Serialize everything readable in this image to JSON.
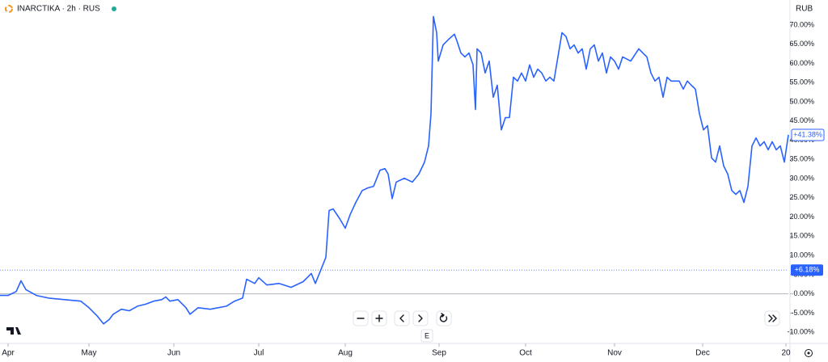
{
  "ui": {
    "header": "INARCTIKA · 2h · RUS",
    "currency": "RUB",
    "compare_button": "E"
  },
  "chart_data": {
    "type": "line",
    "x": [
      -2,
      0,
      2,
      3.2,
      4.4,
      7,
      10,
      14,
      18,
      20,
      22,
      23.6,
      25,
      26,
      28,
      30,
      32,
      34,
      36,
      38,
      39,
      40,
      42,
      44,
      45,
      47,
      50,
      54,
      56,
      58,
      59,
      61,
      62,
      64,
      67,
      70,
      73,
      75,
      76,
      77.6,
      78.6,
      79.4,
      80.4,
      82,
      83.4,
      84.6,
      86,
      87.6,
      89,
      90.4,
      92,
      93.2,
      94,
      95,
      96,
      98,
      100,
      101.6,
      103,
      104,
      104.6,
      105.2,
      106,
      106.4,
      107.6,
      109,
      110.4,
      111,
      112,
      113,
      114,
      115,
      115.6,
      116,
      117,
      118,
      119,
      120,
      121,
      122,
      123,
      124,
      125,
      126,
      127,
      128,
      129,
      130,
      131,
      132,
      133,
      134,
      135,
      136,
      137,
      138,
      139,
      140,
      141,
      142,
      143,
      144,
      145,
      146,
      147,
      148,
      149,
      150,
      151,
      152,
      154,
      156,
      157,
      158,
      159,
      160,
      161,
      162,
      163,
      164,
      166,
      167,
      168,
      169,
      170,
      171,
      172,
      173,
      174,
      175,
      176,
      177,
      178,
      179,
      180,
      181,
      182,
      183,
      184,
      185,
      186,
      187,
      188,
      189,
      190,
      191,
      192,
      193
    ],
    "series": [
      {
        "name": "INARCTIKA",
        "color": "#2962ff",
        "values": [
          -0.4,
          -0.4,
          0.6,
          3.4,
          1.1,
          -0.4,
          -1.1,
          -1.5,
          -1.9,
          -3.6,
          -5.7,
          -7.8,
          -6.7,
          -5.3,
          -4.0,
          -4.4,
          -3.2,
          -2.7,
          -1.9,
          -1.5,
          -0.8,
          -1.9,
          -1.5,
          -3.6,
          -5.3,
          -3.6,
          -4.0,
          -3.2,
          -1.9,
          -1.1,
          3.8,
          2.7,
          4.2,
          2.3,
          2.7,
          1.7,
          3.2,
          5.3,
          2.7,
          6.9,
          9.5,
          21.7,
          22.1,
          19.6,
          17.1,
          20.6,
          23.8,
          26.9,
          27.6,
          28.0,
          32.2,
          32.6,
          31.2,
          24.8,
          29.1,
          30.1,
          29.1,
          31.2,
          34.3,
          38.5,
          46.9,
          72.2,
          68.0,
          60.6,
          64.8,
          66.3,
          67.6,
          65.9,
          62.7,
          61.7,
          62.7,
          59.6,
          48.0,
          63.8,
          62.7,
          57.5,
          60.6,
          51.2,
          54.3,
          42.7,
          45.9,
          45.9,
          56.4,
          55.4,
          57.5,
          55.4,
          59.6,
          56.4,
          58.5,
          57.5,
          55.4,
          56.4,
          55.4,
          61.7,
          68.0,
          67.0,
          63.8,
          64.8,
          62.7,
          63.8,
          58.5,
          63.8,
          64.8,
          60.6,
          62.7,
          57.5,
          61.7,
          60.6,
          58.5,
          61.7,
          60.6,
          63.8,
          62.7,
          61.7,
          57.5,
          55.4,
          56.4,
          51.2,
          56.4,
          55.4,
          55.4,
          53.3,
          55.4,
          54.3,
          53.3,
          46.9,
          42.7,
          43.8,
          35.4,
          34.3,
          38.5,
          33.3,
          31.2,
          26.9,
          25.9,
          26.9,
          23.8,
          28.0,
          38.5,
          40.6,
          38.5,
          39.6,
          37.5,
          39.6,
          37.5,
          38.5,
          34.3,
          41.4
        ]
      }
    ],
    "xlim": [
      -2,
      193
    ],
    "xticks": [
      {
        "value": 0,
        "label": "Apr"
      },
      {
        "value": 20,
        "label": "May"
      },
      {
        "value": 41,
        "label": "Jun"
      },
      {
        "value": 62,
        "label": "Jul"
      },
      {
        "value": 83.4,
        "label": "Aug"
      },
      {
        "value": 106.6,
        "label": "Sep"
      },
      {
        "value": 128,
        "label": "Oct"
      },
      {
        "value": 150,
        "label": "Nov"
      },
      {
        "value": 171.8,
        "label": "Dec"
      },
      {
        "value": 192.4,
        "label": "20"
      }
    ],
    "ylim": [
      -12.9,
      76.5
    ],
    "yticks": [
      {
        "value": -10,
        "label": "-10.00%"
      },
      {
        "value": -5,
        "label": "-5.00%"
      },
      {
        "value": 0,
        "label": "0.00%"
      },
      {
        "value": 5,
        "label": "5.00%"
      },
      {
        "value": 10,
        "label": "10.00%"
      },
      {
        "value": 15,
        "label": "15.00%"
      },
      {
        "value": 20,
        "label": "20.00%"
      },
      {
        "value": 25,
        "label": "25.00%"
      },
      {
        "value": 30,
        "label": "30.00%"
      },
      {
        "value": 35,
        "label": "35.00%"
      },
      {
        "value": 40,
        "label": "40.00%"
      },
      {
        "value": 45,
        "label": "45.00%"
      },
      {
        "value": 50,
        "label": "50.00%"
      },
      {
        "value": 55,
        "label": "55.00%"
      },
      {
        "value": 60,
        "label": "60.00%"
      },
      {
        "value": 65,
        "label": "65.00%"
      },
      {
        "value": 70,
        "label": "70.00%"
      }
    ],
    "zero_line": {
      "value": 0
    },
    "price_lines": [
      {
        "value": 6.18,
        "label": "+6.18%",
        "style": "filled"
      },
      {
        "value": 41.38,
        "label": "+41.38%",
        "style": "outline"
      }
    ]
  }
}
